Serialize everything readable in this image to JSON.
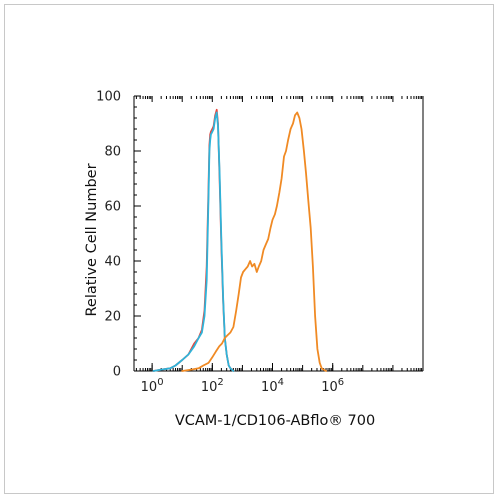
{
  "chart_data": {
    "type": "line",
    "title": "",
    "xlabel": "VCAM-1/CD106-ABflo® 700",
    "ylabel": "Relative Cell Number",
    "x_scale": "log",
    "xlim": [
      0.25,
      1000000000
    ],
    "ylim": [
      0,
      100
    ],
    "x_ticks": [
      {
        "base": "10",
        "exp": "0",
        "value": 1
      },
      {
        "base": "10",
        "exp": "2",
        "value": 100
      },
      {
        "base": "10",
        "exp": "4",
        "value": 10000
      },
      {
        "base": "10",
        "exp": "6",
        "value": 1000000
      }
    ],
    "y_ticks": [
      "0",
      "20",
      "40",
      "60",
      "80",
      "100"
    ],
    "grid": false,
    "legend": "none",
    "series": [
      {
        "color": "#e8453c",
        "x": [
          1.1,
          2,
          4,
          6,
          10,
          16,
          25,
          35,
          45,
          55,
          65,
          75,
          80,
          85,
          90,
          100,
          110,
          125,
          140,
          155,
          175,
          200,
          230,
          260,
          300,
          350,
          400,
          500
        ],
        "y": [
          0,
          0.5,
          1,
          2,
          4,
          6,
          10,
          12,
          15,
          22,
          38,
          68,
          82,
          86,
          87,
          88,
          89,
          93,
          95,
          90,
          70,
          45,
          25,
          12,
          6,
          2,
          1,
          0
        ]
      },
      {
        "color": "#2fb3d9",
        "x": [
          1.1,
          2,
          4,
          6,
          10,
          16,
          25,
          35,
          45,
          55,
          65,
          75,
          80,
          85,
          90,
          100,
          110,
          125,
          140,
          155,
          175,
          200,
          230,
          260,
          300,
          350,
          400,
          500
        ],
        "y": [
          0,
          0.5,
          1,
          2,
          4,
          6,
          9,
          12,
          14,
          20,
          33,
          65,
          80,
          84,
          86,
          87,
          88,
          92,
          94,
          89,
          72,
          47,
          26,
          12,
          6,
          2,
          1,
          0
        ]
      },
      {
        "color": "#f08a24",
        "x": [
          10,
          20,
          35,
          50,
          75,
          100,
          130,
          170,
          210,
          260,
          320,
          400,
          500,
          620,
          750,
          900,
          1050,
          1250,
          1500,
          1800,
          2100,
          2500,
          3000,
          3500,
          4200,
          5000,
          6000,
          7200,
          8600,
          10000,
          12000,
          14000,
          17000,
          20000,
          24000,
          28000,
          33000,
          40000,
          48000,
          56000,
          66000,
          78000,
          92000,
          110000,
          130000,
          155000,
          185000,
          220000,
          260000,
          310000,
          370000,
          430000,
          500000,
          600000
        ],
        "y": [
          0,
          0.5,
          1,
          2,
          3,
          5,
          7,
          9,
          10,
          12,
          13,
          14,
          16,
          22,
          28,
          34,
          36,
          37,
          38,
          40,
          38,
          39,
          36,
          38,
          40,
          44,
          46,
          48,
          52,
          55,
          57,
          60,
          65,
          70,
          78,
          80,
          84,
          88,
          90,
          93,
          94,
          92,
          88,
          80,
          72,
          62,
          52,
          38,
          20,
          8,
          3,
          1,
          0.5,
          0
        ]
      }
    ]
  }
}
